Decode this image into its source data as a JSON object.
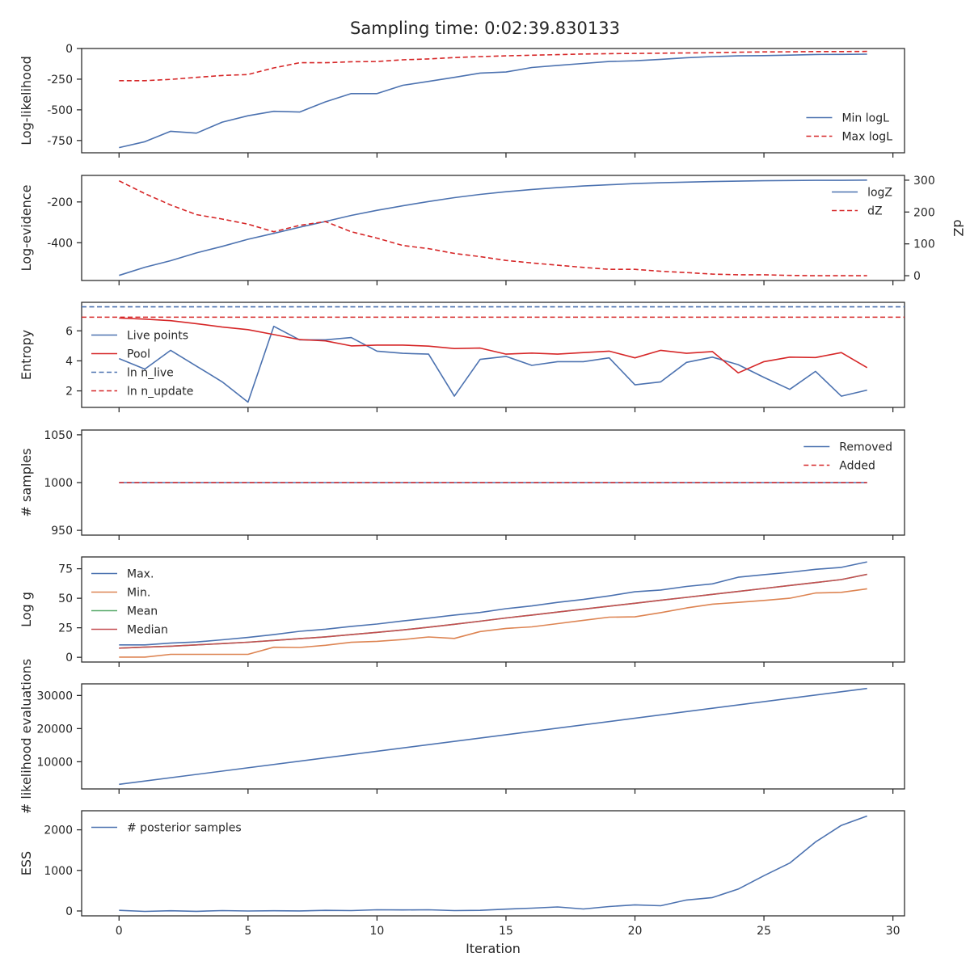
{
  "figure": {
    "title": "Sampling time: 0:02:39.830133"
  },
  "shared_x": {
    "label": "Iteration",
    "ticks": [
      0,
      5,
      10,
      15,
      20,
      25,
      30
    ]
  },
  "colors": {
    "blue": "#4c72b0",
    "red": "#d62728",
    "orange": "#dd8452",
    "green": "#55a868",
    "brown": "#c44e52",
    "axis": "#262626"
  },
  "chart_data": [
    {
      "id": "loglikelihood",
      "type": "line",
      "ylabel": "Log-likelihood",
      "ylim": [
        -850,
        0
      ],
      "yticks": [
        0,
        -250,
        -500,
        -750
      ],
      "legend": {
        "position": "lower-right"
      },
      "series": [
        {
          "name": "Min logL",
          "color": "#4c72b0",
          "dash": false,
          "x": [
            0,
            1,
            2,
            3,
            4,
            5,
            6,
            7,
            8,
            9,
            10,
            11,
            12,
            13,
            14,
            15,
            16,
            17,
            18,
            19,
            20,
            21,
            22,
            23,
            24,
            25,
            26,
            27,
            28,
            29
          ],
          "y": [
            -808,
            -760,
            -675,
            -690,
            -600,
            -548,
            -512,
            -518,
            -435,
            -368,
            -368,
            -300,
            -268,
            -235,
            -200,
            -192,
            -155,
            -138,
            -122,
            -106,
            -100,
            -88,
            -75,
            -66,
            -60,
            -58,
            -54,
            -49,
            -48,
            -46
          ]
        },
        {
          "name": "Max logL",
          "color": "#d62728",
          "dash": true,
          "x": [
            0,
            1,
            2,
            3,
            4,
            5,
            6,
            7,
            8,
            9,
            10,
            11,
            12,
            13,
            14,
            15,
            16,
            17,
            18,
            19,
            20,
            21,
            22,
            23,
            24,
            25,
            26,
            27,
            28,
            29
          ],
          "y": [
            -262,
            -262,
            -252,
            -235,
            -220,
            -212,
            -158,
            -116,
            -116,
            -108,
            -106,
            -92,
            -85,
            -74,
            -66,
            -60,
            -55,
            -50,
            -45,
            -42,
            -40,
            -38,
            -36,
            -34,
            -30,
            -28,
            -27,
            -25,
            -25,
            -24
          ]
        }
      ]
    },
    {
      "id": "logevidence",
      "type": "line",
      "ylabel": "Log-evidence",
      "ylim": [
        -585,
        -70
      ],
      "yticks": [
        -200,
        -400
      ],
      "ylabel_right": "dZ",
      "ylim_right": [
        -15,
        315
      ],
      "yticks_right": [
        0,
        100,
        200,
        300
      ],
      "legend": {
        "position": "upper-right"
      },
      "series": [
        {
          "name": "logZ",
          "color": "#4c72b0",
          "dash": false,
          "axis": "left",
          "x": [
            0,
            1,
            2,
            3,
            4,
            5,
            6,
            7,
            8,
            9,
            10,
            11,
            12,
            13,
            14,
            15,
            16,
            17,
            18,
            19,
            20,
            21,
            22,
            23,
            24,
            25,
            26,
            27,
            28,
            29
          ],
          "y": [
            -560,
            -520,
            -488,
            -450,
            -418,
            -383,
            -354,
            -324,
            -296,
            -266,
            -241,
            -219,
            -198,
            -179,
            -163,
            -150,
            -139,
            -130,
            -122,
            -116,
            -110,
            -106,
            -103,
            -100,
            -98,
            -96,
            -95,
            -94,
            -94,
            -93
          ]
        },
        {
          "name": "dZ",
          "color": "#d62728",
          "dash": true,
          "axis": "right",
          "x": [
            0,
            1,
            2,
            3,
            4,
            5,
            6,
            7,
            8,
            9,
            10,
            11,
            12,
            13,
            14,
            15,
            16,
            17,
            18,
            19,
            20,
            21,
            22,
            23,
            24,
            25,
            26,
            27,
            28,
            29
          ],
          "y": [
            298,
            258,
            222,
            192,
            178,
            162,
            138,
            158,
            170,
            138,
            118,
            95,
            85,
            70,
            60,
            48,
            40,
            33,
            26,
            20,
            20,
            14,
            10,
            5,
            3,
            3,
            1,
            0,
            0,
            0
          ]
        }
      ]
    },
    {
      "id": "entropy",
      "type": "line",
      "ylabel": "Entropy",
      "ylim": [
        0.9,
        7.9
      ],
      "yticks": [
        2,
        4,
        6
      ],
      "legend": {
        "position": "lower-left"
      },
      "series": [
        {
          "name": "Live points",
          "color": "#4c72b0",
          "dash": false,
          "x": [
            0,
            1,
            2,
            3,
            4,
            5,
            6,
            7,
            8,
            9,
            10,
            11,
            12,
            13,
            14,
            15,
            16,
            17,
            18,
            19,
            20,
            21,
            22,
            23,
            24,
            25,
            26,
            27,
            28,
            29
          ],
          "y": [
            4.15,
            3.45,
            4.7,
            3.65,
            2.6,
            1.25,
            6.3,
            5.4,
            5.4,
            5.55,
            4.65,
            4.5,
            4.45,
            1.65,
            4.1,
            4.3,
            3.7,
            3.95,
            3.95,
            4.2,
            2.4,
            2.6,
            3.9,
            4.25,
            3.75,
            2.9,
            2.1,
            3.3,
            1.65,
            2.05
          ]
        },
        {
          "name": "Pool",
          "color": "#d62728",
          "dash": false,
          "x": [
            0,
            1,
            2,
            3,
            4,
            5,
            6,
            7,
            8,
            9,
            10,
            11,
            12,
            13,
            14,
            15,
            16,
            17,
            18,
            19,
            20,
            21,
            22,
            23,
            24,
            25,
            26,
            27,
            28,
            29
          ],
          "y": [
            6.85,
            6.78,
            6.68,
            6.48,
            6.25,
            6.08,
            5.75,
            5.42,
            5.33,
            5.0,
            5.05,
            5.05,
            4.98,
            4.82,
            4.85,
            4.45,
            4.52,
            4.45,
            4.55,
            4.65,
            4.2,
            4.7,
            4.5,
            4.62,
            3.2,
            3.95,
            4.25,
            4.22,
            4.55,
            3.55
          ]
        },
        {
          "name": "ln n_live",
          "color": "#4c72b0",
          "dash": true,
          "constant": 7.6
        },
        {
          "name": "ln n_update",
          "color": "#d62728",
          "dash": true,
          "constant": 6.91
        }
      ]
    },
    {
      "id": "samples",
      "type": "line",
      "ylabel": "# samples",
      "ylim": [
        945,
        1055
      ],
      "yticks": [
        950,
        1000,
        1050
      ],
      "legend": {
        "position": "upper-right"
      },
      "series": [
        {
          "name": "Removed",
          "color": "#4c72b0",
          "dash": false,
          "x": [
            0,
            29
          ],
          "y": [
            1000,
            1000
          ]
        },
        {
          "name": "Added",
          "color": "#d62728",
          "dash": true,
          "x": [
            0,
            29
          ],
          "y": [
            1000,
            1000
          ]
        }
      ]
    },
    {
      "id": "logg",
      "type": "line",
      "ylabel": "Log g",
      "ylim": [
        -4,
        85
      ],
      "yticks": [
        0,
        25,
        50,
        75
      ],
      "legend": {
        "position": "upper-left"
      },
      "series": [
        {
          "name": "Max.",
          "color": "#4c72b0",
          "dash": false,
          "x": [
            0,
            1,
            2,
            3,
            4,
            5,
            6,
            7,
            8,
            9,
            10,
            11,
            12,
            13,
            14,
            15,
            16,
            17,
            18,
            19,
            20,
            21,
            22,
            23,
            24,
            25,
            26,
            27,
            28,
            29
          ],
          "y": [
            10.5,
            10.5,
            12,
            13,
            14.8,
            16.8,
            19.2,
            22,
            23.8,
            26.2,
            28.2,
            30.8,
            33.2,
            35.8,
            38,
            41.2,
            43.5,
            46.5,
            49,
            52,
            55.5,
            57,
            60,
            62.2,
            67.8,
            70,
            72,
            74.5,
            76.2,
            80.8
          ]
        },
        {
          "name": "Min.",
          "color": "#dd8452",
          "dash": false,
          "x": [
            0,
            1,
            2,
            3,
            4,
            5,
            6,
            7,
            8,
            9,
            10,
            11,
            12,
            13,
            14,
            15,
            16,
            17,
            18,
            19,
            20,
            21,
            22,
            23,
            24,
            25,
            26,
            27,
            28,
            29
          ],
          "y": [
            0.2,
            0.2,
            2.5,
            2.5,
            2.5,
            2.5,
            8.5,
            8.3,
            10.2,
            12.7,
            13.5,
            15,
            17.2,
            16,
            21.8,
            24.5,
            25.8,
            28.5,
            31.3,
            34,
            34.3,
            37.8,
            41.8,
            45,
            46.5,
            48.2,
            50,
            54.5,
            55,
            58
          ]
        },
        {
          "name": "Mean",
          "color": "#55a868",
          "dash": false,
          "x": [
            0,
            1,
            2,
            3,
            4,
            5,
            6,
            7,
            8,
            9,
            10,
            11,
            12,
            13,
            14,
            15,
            16,
            17,
            18,
            19,
            20,
            21,
            22,
            23,
            24,
            25,
            26,
            27,
            28,
            29
          ],
          "y": [
            7.8,
            8.6,
            9.4,
            10.5,
            11.6,
            12.8,
            14.3,
            15.8,
            17.3,
            19.2,
            21.1,
            23.2,
            25.5,
            28,
            30.6,
            33.3,
            35.8,
            38.3,
            40.8,
            43.3,
            45.8,
            48.3,
            50.8,
            53.3,
            55.8,
            58.3,
            60.8,
            63.3,
            65.8,
            70.3
          ]
        },
        {
          "name": "Median",
          "color": "#c44e52",
          "dash": false,
          "x": [
            0,
            1,
            2,
            3,
            4,
            5,
            6,
            7,
            8,
            9,
            10,
            11,
            12,
            13,
            14,
            15,
            16,
            17,
            18,
            19,
            20,
            21,
            22,
            23,
            24,
            25,
            26,
            27,
            28,
            29
          ],
          "y": [
            7.8,
            8.6,
            9.4,
            10.5,
            11.6,
            12.8,
            14.3,
            15.8,
            17.3,
            19.2,
            21.1,
            23.2,
            25.5,
            28,
            30.6,
            33.3,
            35.8,
            38.3,
            40.8,
            43.3,
            45.8,
            48.3,
            50.8,
            53.3,
            55.8,
            58.3,
            60.8,
            63.3,
            65.8,
            70.3
          ]
        }
      ]
    },
    {
      "id": "likelihood_evals",
      "type": "line",
      "ylabel": "# likelihood evaluations",
      "ylim": [
        1800,
        33500
      ],
      "yticks": [
        10000,
        20000,
        30000
      ],
      "series": [
        {
          "name": "",
          "color": "#4c72b0",
          "dash": false,
          "x": [
            0,
            29
          ],
          "y": [
            3200,
            32100
          ]
        }
      ]
    },
    {
      "id": "ess",
      "type": "line",
      "ylabel": "ESS",
      "ylim": [
        -120,
        2470
      ],
      "yticks": [
        0,
        1000,
        2000
      ],
      "legend": {
        "position": "upper-left"
      },
      "series": [
        {
          "name": "# posterior samples",
          "color": "#4c72b0",
          "dash": false,
          "x": [
            0,
            1,
            2,
            3,
            4,
            5,
            6,
            7,
            8,
            9,
            10,
            11,
            12,
            13,
            14,
            15,
            16,
            17,
            18,
            19,
            20,
            21,
            22,
            23,
            24,
            25,
            26,
            27,
            28,
            29
          ],
          "y": [
            15,
            -10,
            5,
            -8,
            10,
            0,
            5,
            2,
            15,
            10,
            30,
            25,
            30,
            10,
            15,
            45,
            70,
            100,
            50,
            110,
            150,
            130,
            270,
            330,
            540,
            870,
            1180,
            1700,
            2110,
            2340
          ]
        }
      ]
    }
  ]
}
